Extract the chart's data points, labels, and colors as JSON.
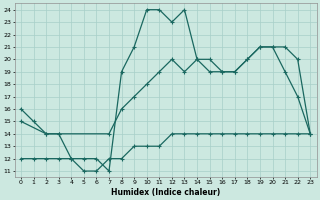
{
  "xlabel": "Humidex (Indice chaleur)",
  "bg_color": "#cce8e0",
  "grid_color": "#a8cfc8",
  "line_color": "#1a6860",
  "xlim": [
    -0.5,
    23.5
  ],
  "ylim": [
    10.5,
    24.5
  ],
  "yticks": [
    11,
    12,
    13,
    14,
    15,
    16,
    17,
    18,
    19,
    20,
    21,
    22,
    23,
    24
  ],
  "xticks": [
    0,
    1,
    2,
    3,
    4,
    5,
    6,
    7,
    8,
    9,
    10,
    11,
    12,
    13,
    14,
    15,
    16,
    17,
    18,
    19,
    20,
    21,
    22,
    23
  ],
  "line1_x": [
    0,
    1,
    2,
    3,
    4,
    5,
    6,
    7,
    8,
    9,
    10,
    11,
    12,
    13,
    14,
    15,
    16,
    17,
    18,
    19,
    20,
    21,
    22,
    23
  ],
  "line1_y": [
    16,
    15,
    14,
    14,
    12,
    12,
    12,
    11,
    19,
    21,
    24,
    24,
    23,
    24,
    20,
    19,
    19,
    19,
    20,
    21,
    21,
    19,
    17,
    14
  ],
  "line2_x": [
    0,
    2,
    3,
    7,
    8,
    9,
    10,
    11,
    12,
    13,
    14,
    15,
    16,
    17,
    18,
    19,
    20,
    21,
    22,
    23
  ],
  "line2_y": [
    15,
    14,
    14,
    14,
    16,
    17,
    18,
    19,
    20,
    19,
    20,
    20,
    19,
    19,
    20,
    21,
    21,
    21,
    20,
    14
  ],
  "line3_x": [
    0,
    1,
    2,
    3,
    4,
    5,
    6,
    7,
    8,
    9,
    10,
    11,
    12,
    13,
    14,
    15,
    16,
    17,
    18,
    19,
    20,
    21,
    22,
    23
  ],
  "line3_y": [
    12,
    12,
    12,
    12,
    12,
    11,
    11,
    12,
    12,
    13,
    13,
    13,
    14,
    14,
    14,
    14,
    14,
    14,
    14,
    14,
    14,
    14,
    14,
    14
  ]
}
